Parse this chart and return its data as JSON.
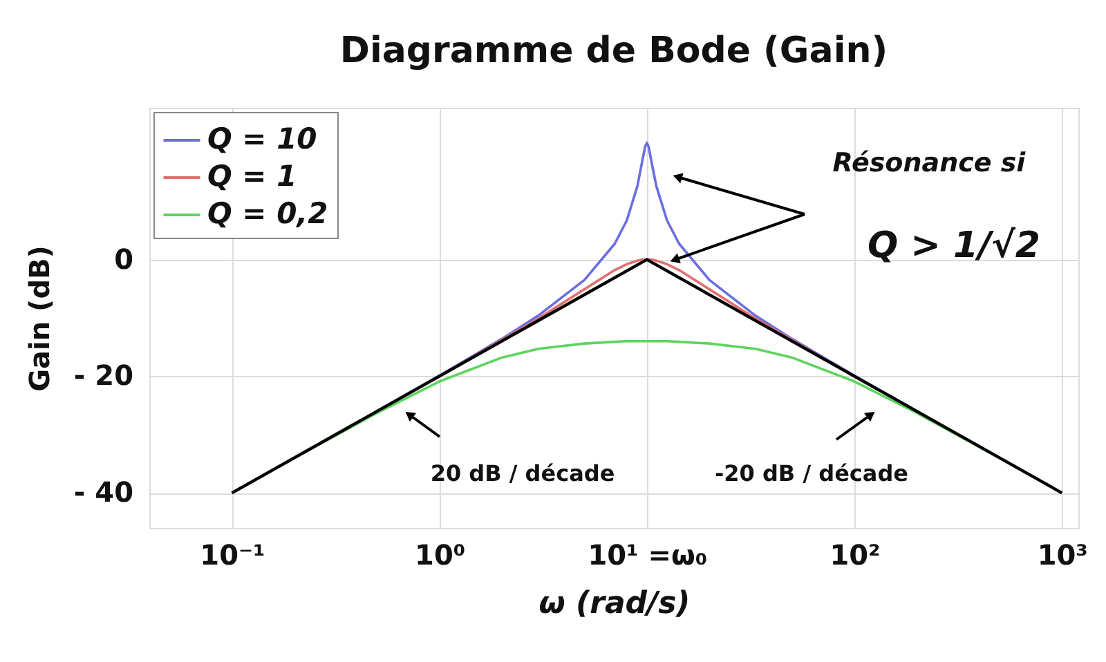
{
  "chart_data": {
    "type": "line",
    "title": "Diagramme de Bode (Gain)",
    "xlabel": "ω (rad/s)",
    "ylabel": "Gain (dB)",
    "x": [
      0.1,
      0.2,
      0.5,
      1,
      2,
      3,
      5,
      7,
      8,
      9,
      9.5,
      9.8,
      10,
      10.2,
      10.5,
      11.1,
      12.5,
      14.3,
      20,
      33.3,
      50,
      100,
      200,
      500,
      1000
    ],
    "series": [
      {
        "name": "Q = 10",
        "color": "#6a6ee0",
        "values": [
          null,
          null,
          -26,
          -19.9,
          -13.6,
          -9.6,
          -3.5,
          2.7,
          6.7,
          12.6,
          16.9,
          19.3,
          20,
          19.3,
          16.9,
          12.6,
          6.7,
          2.7,
          -3.5,
          -9.6,
          -13.6,
          -19.9,
          -26,
          null,
          null
        ]
      },
      {
        "name": "Q = 1",
        "color": "#e07070",
        "values": [
          null,
          null,
          null,
          -20,
          -13.8,
          -10.1,
          -5.1,
          -1.8,
          -0.8,
          -0.2,
          0,
          0,
          0,
          0,
          0,
          -0.2,
          -0.8,
          -1.8,
          -5.1,
          -10.1,
          -13.8,
          -20,
          null,
          null,
          null
        ]
      },
      {
        "name": "Q = 0,2",
        "color": "#5ed45e",
        "values": [
          -40,
          -34,
          -26.3,
          -20.9,
          -16.8,
          -15.3,
          -14.4,
          -14.1,
          -14,
          -14,
          -14,
          -14,
          -14,
          -14,
          -14,
          -14,
          -14,
          -14.1,
          -14.4,
          -15.3,
          -16.8,
          -20.9,
          -26.3,
          -34,
          -40
        ]
      },
      {
        "color": "#000000",
        "x": [
          0.1,
          10,
          1000
        ],
        "values": [
          -40,
          0,
          -40
        ]
      }
    ],
    "xlim": [
      0.04,
      1200
    ],
    "ylim": [
      -46,
      26
    ],
    "xticks": [
      {
        "value": 0.1,
        "label": "10⁻¹"
      },
      {
        "value": 1,
        "label": "10⁰"
      },
      {
        "value": 10,
        "label": "10¹ =ω₀"
      },
      {
        "value": 100,
        "label": "10²"
      },
      {
        "value": 1000,
        "label": "10³"
      }
    ],
    "yticks": [
      0,
      {
        "value": -20,
        "label": "- 20"
      },
      {
        "value": -40,
        "label": "- 40"
      }
    ],
    "log": "x",
    "grid": true,
    "legend": "top left",
    "marker": "none",
    "line_style": "solid",
    "annotations": [
      "Résonance si",
      "Q > 1/√2",
      "20 dB / décade",
      "-20 dB / décade"
    ]
  }
}
